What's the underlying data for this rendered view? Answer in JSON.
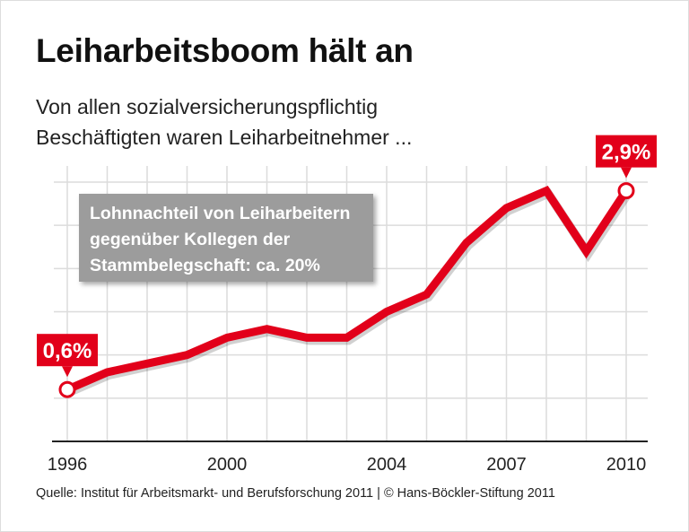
{
  "title": "Leiharbeitsboom hält an",
  "subtitle_lines": [
    "Von allen sozialversicherungspflichtig",
    "Beschäftigten waren Leiharbeitnehmer ..."
  ],
  "note": [
    "Lohnnachteil von Leiharbeitern",
    "gegenüber Kollegen der",
    "Stammbelegschaft: ca. 20%"
  ],
  "source": "Quelle: Institut für Arbeitsmarkt- und Berufsforschung 2011 | © Hans-Böckler-Stiftung 2011",
  "colors": {
    "line": "#e2001a",
    "grid": "#dcdcdc",
    "axis": "#222222",
    "note_bg": "#9c9c9c"
  },
  "chart_data": {
    "type": "line",
    "x": [
      1996,
      1997,
      1998,
      1999,
      2000,
      2001,
      2002,
      2003,
      2004,
      2005,
      2006,
      2007,
      2008,
      2009,
      2010
    ],
    "series": [
      {
        "values": [
          0.6,
          0.8,
          0.9,
          1.0,
          1.2,
          1.3,
          1.2,
          1.2,
          1.5,
          1.7,
          2.3,
          2.7,
          2.9,
          2.2,
          2.9
        ]
      }
    ],
    "xticks": [
      "1996",
      "2000",
      "2004",
      "2007",
      "2010"
    ],
    "ylim": [
      0,
      3.0
    ],
    "grid": true,
    "annotations": [
      {
        "x": 1996,
        "label": "0,6%"
      },
      {
        "x": 2010,
        "label": "2,9%"
      }
    ]
  }
}
